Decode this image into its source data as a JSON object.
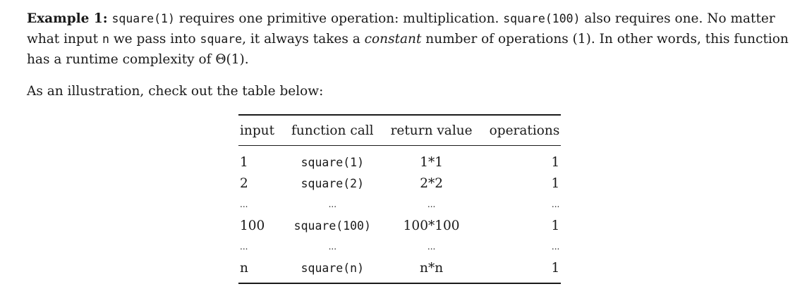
{
  "paragraph1": {
    "lead": "Example 1:",
    "code_a": "square(1)",
    "t1": " requires one primitive operation: multiplication. ",
    "code_b": "square(100)",
    "t2": " also requires one. No matter what input ",
    "code_n": "n",
    "t3": " we pass into ",
    "code_sq": "square",
    "t4": ", it always takes a ",
    "constant": "constant",
    "t5": " number of operations (1). In other words, this function has a runtime complexity of Θ(1)."
  },
  "paragraph2": "As an illustration, check out the table below:",
  "table": {
    "headers": [
      "input",
      "function call",
      "return value",
      "operations"
    ],
    "rows": [
      [
        "1",
        "square(1)",
        "1*1",
        "1"
      ],
      [
        "2",
        "square(2)",
        "2*2",
        "1"
      ],
      [
        "...",
        "...",
        "...",
        "..."
      ],
      [
        "100",
        "square(100)",
        "100*100",
        "1"
      ],
      [
        "...",
        "...",
        "...",
        "..."
      ],
      [
        "n",
        "square(n)",
        "n*n",
        "1"
      ]
    ]
  }
}
